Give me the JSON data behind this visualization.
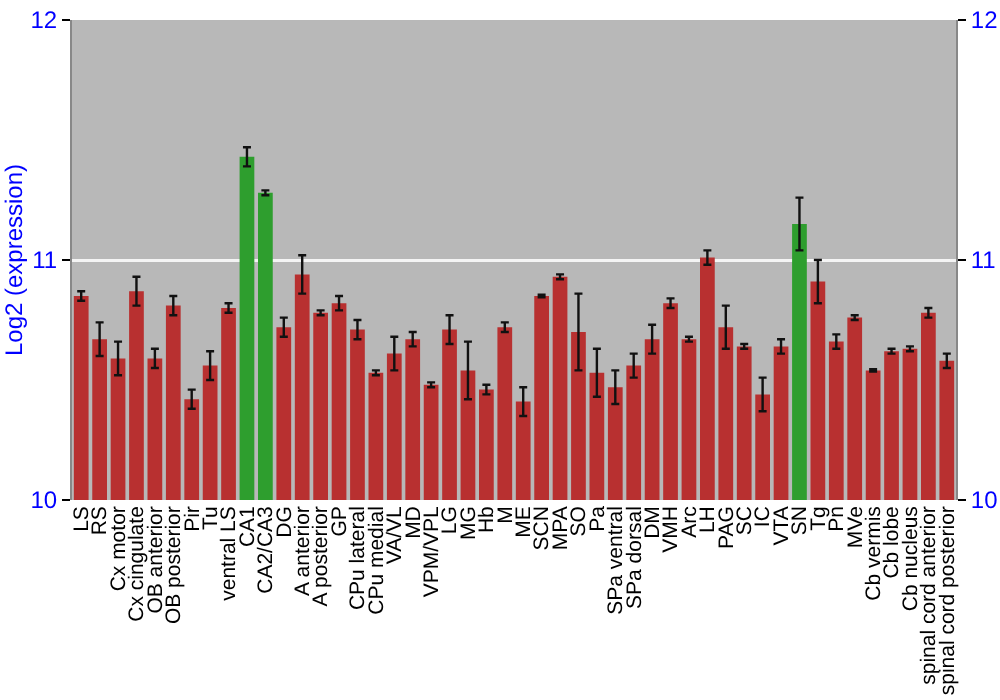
{
  "chart_data": {
    "type": "bar",
    "ylabel": "Log2 (expression)",
    "categories": [
      "LS",
      "RS",
      "Cx motor",
      "Cx cingulate",
      "OB anterior",
      "OB posterior",
      "Pir",
      "Tu",
      "ventral LS",
      "CA1",
      "CA2/CA3",
      "DG",
      "A anterior",
      "A posterior",
      "GP",
      "CPu lateral",
      "CPu medial",
      "VA/VL",
      "MD",
      "VPM/VPL",
      "LG",
      "MG",
      "Hb",
      "M",
      "ME",
      "SCN",
      "MPA",
      "SO",
      "Pa",
      "SPa ventral",
      "SPa dorsal",
      "DM",
      "VMH",
      "Arc",
      "LH",
      "PAG",
      "SC",
      "IC",
      "VTA",
      "SN",
      "Tg",
      "Pn",
      "MVe",
      "Cb vermis",
      "Cb lobe",
      "Cb nucleus",
      "spinal cord anterior",
      "spinal cord posterior"
    ],
    "values": [
      10.85,
      10.67,
      10.59,
      10.87,
      10.59,
      10.81,
      10.42,
      10.56,
      10.8,
      11.43,
      11.28,
      10.72,
      10.94,
      10.78,
      10.82,
      10.71,
      10.53,
      10.61,
      10.67,
      10.48,
      10.71,
      10.54,
      10.46,
      10.72,
      10.41,
      10.85,
      10.93,
      10.7,
      10.53,
      10.47,
      10.56,
      10.67,
      10.82,
      10.67,
      11.01,
      10.72,
      10.64,
      10.44,
      10.64,
      11.15,
      10.91,
      10.66,
      10.76,
      10.54,
      10.62,
      10.63,
      10.78,
      10.58
    ],
    "errors": [
      0.02,
      0.07,
      0.07,
      0.06,
      0.04,
      0.04,
      0.04,
      0.06,
      0.02,
      0.04,
      0.01,
      0.04,
      0.08,
      0.01,
      0.03,
      0.04,
      0.01,
      0.07,
      0.03,
      0.01,
      0.06,
      0.12,
      0.02,
      0.02,
      0.06,
      0.005,
      0.01,
      0.16,
      0.1,
      0.07,
      0.05,
      0.06,
      0.02,
      0.01,
      0.03,
      0.09,
      0.01,
      0.07,
      0.03,
      0.11,
      0.09,
      0.03,
      0.01,
      0.005,
      0.01,
      0.01,
      0.02,
      0.03
    ],
    "colors": [
      "#b83030",
      "#b83030",
      "#b83030",
      "#b83030",
      "#b83030",
      "#b83030",
      "#b83030",
      "#b83030",
      "#b83030",
      "#2e9e2e",
      "#2e9e2e",
      "#b83030",
      "#b83030",
      "#b83030",
      "#b83030",
      "#b83030",
      "#b83030",
      "#b83030",
      "#b83030",
      "#b83030",
      "#b83030",
      "#b83030",
      "#b83030",
      "#b83030",
      "#b83030",
      "#b83030",
      "#b83030",
      "#b83030",
      "#b83030",
      "#b83030",
      "#b83030",
      "#b83030",
      "#b83030",
      "#b83030",
      "#b83030",
      "#b83030",
      "#b83030",
      "#b83030",
      "#b83030",
      "#2e9e2e",
      "#b83030",
      "#b83030",
      "#b83030",
      "#b83030",
      "#b83030",
      "#b83030",
      "#b83030",
      "#b83030"
    ],
    "ylim": [
      10,
      12
    ],
    "yticks": [
      10,
      11,
      12
    ],
    "y2lim": [
      10,
      12
    ],
    "y2ticks": [
      10,
      11,
      12
    ],
    "grid": "y"
  }
}
